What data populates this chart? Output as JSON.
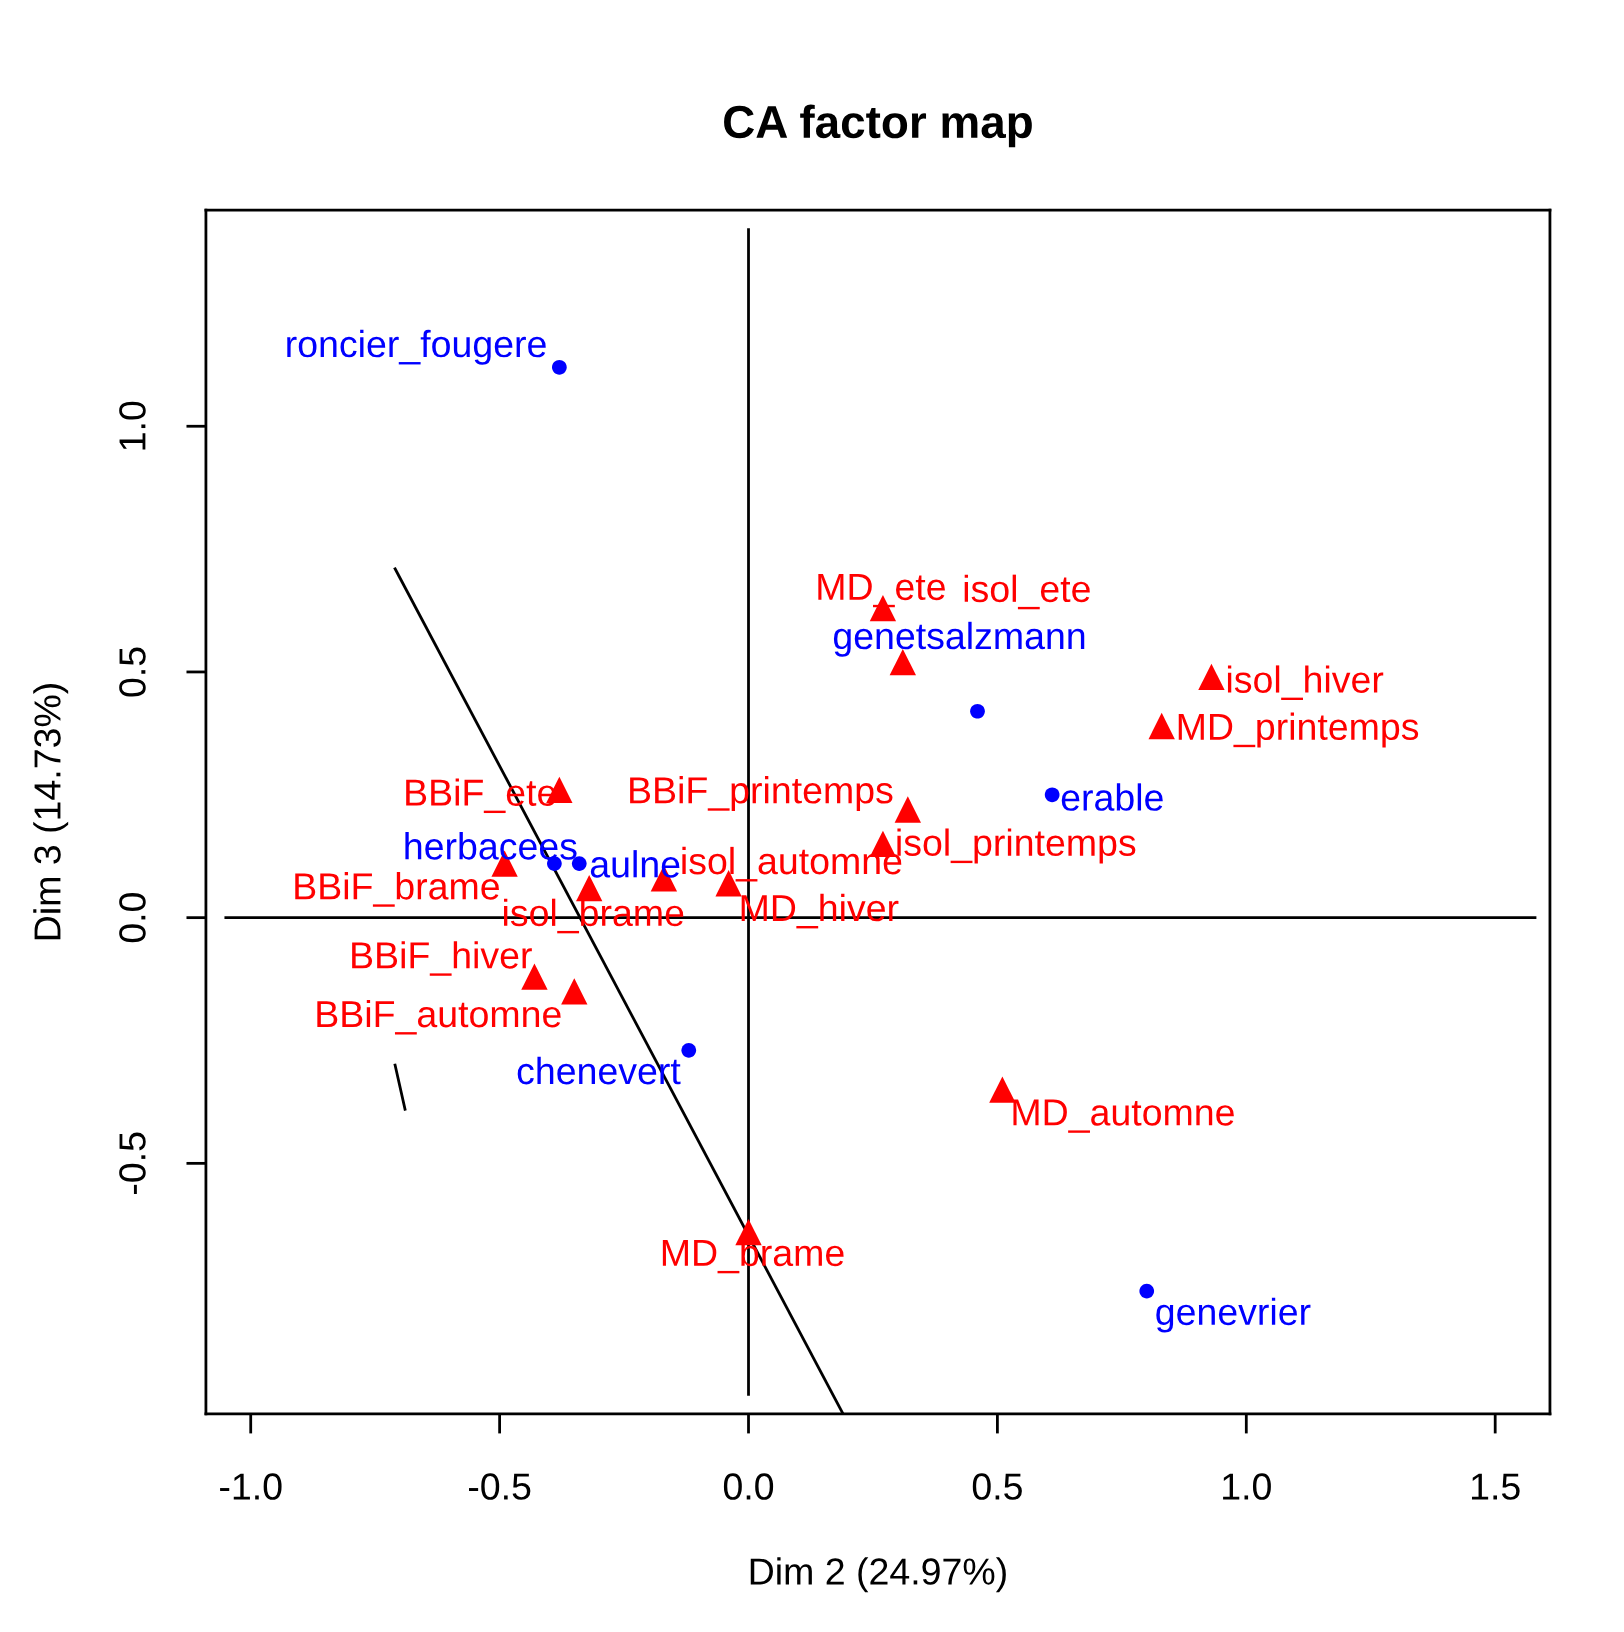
{
  "chart_data": {
    "type": "scatter",
    "title": "CA factor map",
    "xlabel": "Dim 2 (24.97%)",
    "ylabel": "Dim 3 (14.73%)",
    "xlim": [
      -1.09,
      1.61
    ],
    "ylim": [
      -1.01,
      1.44
    ],
    "xticks": [
      {
        "value": -1,
        "label": "-1.0"
      },
      {
        "value": -0.5,
        "label": "-0.5"
      },
      {
        "value": 0,
        "label": "0.0"
      },
      {
        "value": 0.5,
        "label": "0.5"
      },
      {
        "value": 1,
        "label": "1.0"
      },
      {
        "value": 1.5,
        "label": "1.5"
      }
    ],
    "yticks": [
      {
        "value": -0.5,
        "label": "-0.5"
      },
      {
        "value": 0,
        "label": "0.0"
      },
      {
        "value": 0.5,
        "label": "0.5"
      },
      {
        "value": 1,
        "label": "1.0"
      }
    ],
    "series": [
      {
        "color": "#0000ff",
        "marker": "circle",
        "x": [
          -0.38,
          0.46,
          0.61,
          -0.39,
          -0.34,
          -0.12,
          0.8
        ],
        "values": [
          1.12,
          0.42,
          0.25,
          0.11,
          0.11,
          -0.27,
          -0.76
        ],
        "value_labels": [
          "roncier_fougere",
          "genetsalzmann",
          "erable",
          "herbacees",
          "aulne",
          "chenevert",
          "genevrier"
        ]
      },
      {
        "color": "#ff0000",
        "marker": "triangle",
        "x": [
          0.27,
          0.31,
          0.93,
          0.83,
          0.32,
          0.27,
          -0.38,
          -0.49,
          -0.32,
          -0.17,
          -0.04,
          -0.43,
          -0.35,
          0.51,
          0.0
        ],
        "values": [
          0.63,
          0.52,
          0.49,
          0.39,
          0.22,
          0.15,
          0.26,
          0.11,
          0.06,
          0.08,
          0.07,
          -0.12,
          -0.15,
          -0.35,
          -0.64
        ],
        "value_labels": [
          "MD_ete",
          "isol_ete",
          "isol_hiver",
          "MD_printemps",
          "BBiF_printemps",
          "isol_printemps",
          "BBiF_ete",
          "BBiF_brame",
          "isol_brame",
          "isol_automne",
          "MD_hiver",
          "BBiF_hiver",
          "BBiF_automne",
          "MD_automne",
          "MD_brame"
        ]
      },
      {
        "type": "line",
        "color": "#000000",
        "marker": "none",
        "line_style": "solid",
        "x": [
          0,
          0
        ],
        "values": [
          -0.97,
          1.4
        ]
      },
      {
        "type": "line",
        "color": "#000000",
        "marker": "none",
        "line_style": "solid",
        "x": [
          -1.05,
          1.58
        ],
        "values": [
          0,
          0
        ]
      },
      {
        "type": "line",
        "color": "#000000",
        "marker": "none",
        "line_style": "solid",
        "x": [
          -0.71,
          0.19
        ],
        "values": [
          0.71,
          -1.01
        ]
      },
      {
        "type": "line",
        "color": "#000000",
        "marker": "none",
        "line_style": "solid",
        "x": [
          -0.71,
          -0.69
        ],
        "values": [
          -0.3,
          -0.39
        ]
      }
    ]
  }
}
